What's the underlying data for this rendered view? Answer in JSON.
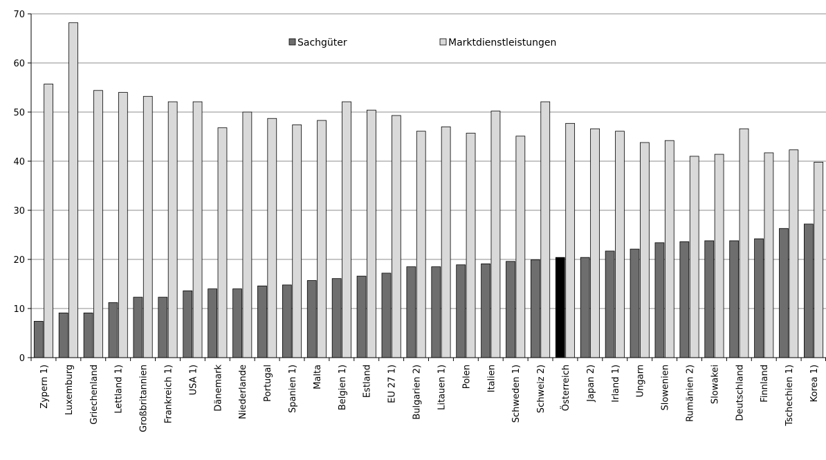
{
  "chart_data": {
    "type": "bar",
    "categories": [
      "Zypern 1)",
      "Luxemburg",
      "Griechenland",
      "Lettland 1)",
      "Großbritannien",
      "Frankreich 1)",
      "USA 1)",
      "Dänemark",
      "Niederlande",
      "Portugal",
      "Spanien 1)",
      "Malta",
      "Belgien 1)",
      "Estland",
      "EU 27 1)",
      "Bulgarien 2)",
      "Litauen 1)",
      "Polen",
      "Italien",
      "Schweden 1)",
      "Schweiz 2)",
      "Österreich",
      "Japan 2)",
      "Irland 1)",
      "Ungarn",
      "Slowenien",
      "Rumänien 2)",
      "Slowakei",
      "Deutschland",
      "Finnland",
      "Tschechien 1)",
      "Korea 1)"
    ],
    "series": [
      {
        "name": "Sachgüter",
        "color": "#6e6e6e",
        "highlight": {
          "category": "Österreich",
          "color": "#000000"
        },
        "values": [
          7.4,
          9.1,
          9.1,
          11.2,
          12.3,
          12.3,
          13.6,
          14.0,
          14.0,
          14.6,
          14.8,
          15.7,
          16.1,
          16.6,
          17.2,
          18.5,
          18.5,
          18.9,
          19.1,
          19.6,
          19.9,
          20.4,
          20.4,
          21.7,
          22.1,
          23.4,
          23.6,
          23.8,
          23.8,
          24.2,
          26.3,
          27.2
        ]
      },
      {
        "name": "Marktdienstleistungen",
        "color": "#d9d9d9",
        "values": [
          55.7,
          68.2,
          54.4,
          54.0,
          53.2,
          52.1,
          52.1,
          46.8,
          50.0,
          48.7,
          47.4,
          48.3,
          52.1,
          50.4,
          49.3,
          46.1,
          47.0,
          45.7,
          50.2,
          45.1,
          52.1,
          47.7,
          46.6,
          46.1,
          43.8,
          44.2,
          41.0,
          41.4,
          46.6,
          41.7,
          42.3,
          39.8
        ]
      }
    ],
    "ylim": [
      0,
      70
    ],
    "yticks": [
      0,
      10,
      20,
      30,
      40,
      50,
      60,
      70
    ],
    "grid": true,
    "legend": "top-center"
  }
}
